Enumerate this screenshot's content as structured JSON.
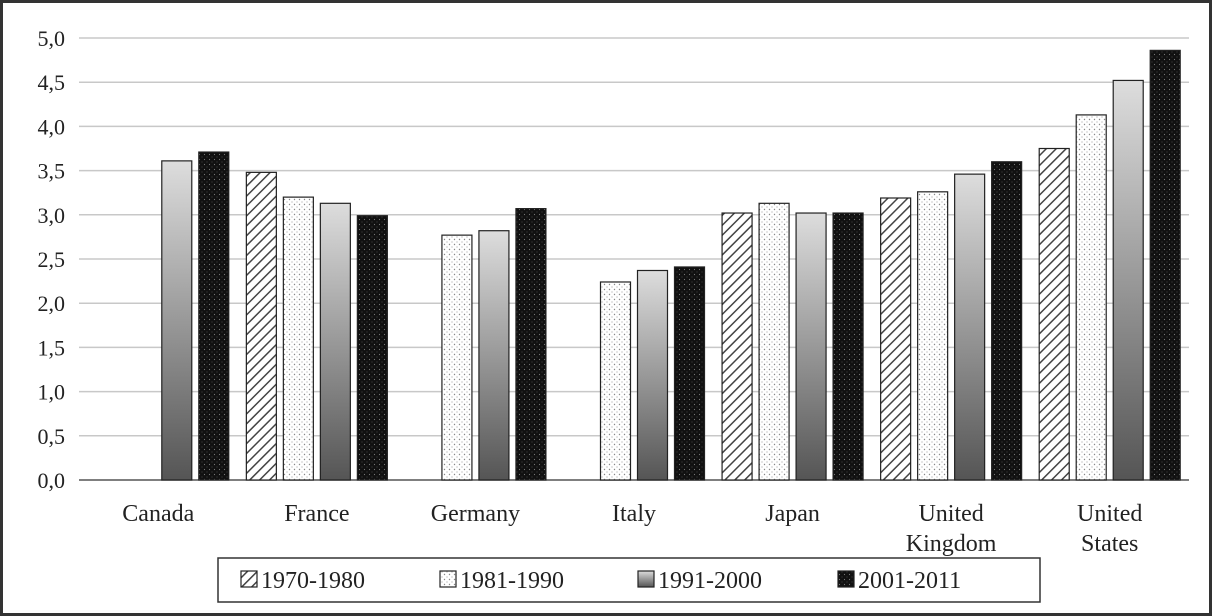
{
  "chart_data": {
    "type": "bar",
    "categories": [
      "Canada",
      "France",
      "Germany",
      "Italy",
      "Japan",
      "United Kingdom",
      "United States"
    ],
    "category_lines": [
      [
        "Canada"
      ],
      [
        "France"
      ],
      [
        "Germany"
      ],
      [
        "Italy"
      ],
      [
        "Japan"
      ],
      [
        "United",
        "Kingdom"
      ],
      [
        "United",
        "States"
      ]
    ],
    "series": [
      {
        "name": "1970-1980",
        "values": [
          null,
          3.48,
          null,
          null,
          3.02,
          3.19,
          3.75
        ],
        "fill": "hatch"
      },
      {
        "name": "1981-1990",
        "values": [
          null,
          3.2,
          2.77,
          2.24,
          3.13,
          3.26,
          4.13
        ],
        "fill": "dots-light"
      },
      {
        "name": "1991-2000",
        "values": [
          3.61,
          3.13,
          2.82,
          2.37,
          3.02,
          3.46,
          4.52
        ],
        "fill": "gradient-gray"
      },
      {
        "name": "2001-2011",
        "values": [
          3.71,
          2.99,
          3.07,
          2.41,
          3.02,
          3.6,
          4.86
        ],
        "fill": "dots-dark"
      }
    ],
    "y_ticks": [
      "0,0",
      "0,5",
      "1,0",
      "1,5",
      "2,0",
      "2,5",
      "3,0",
      "3,5",
      "4,0",
      "4,5",
      "5,0"
    ],
    "ylim": [
      0,
      5
    ],
    "grid": true,
    "legend_position": "bottom",
    "colors": {
      "hatch_line": "#444444",
      "gray_light": "#dddddd",
      "gray_dark": "#555555",
      "black": "#111111",
      "grid": "#c8c8c8"
    }
  }
}
